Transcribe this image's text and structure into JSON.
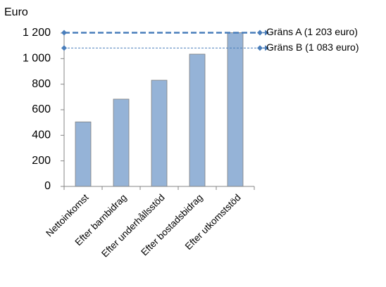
{
  "chart_data": {
    "type": "bar",
    "y_label": "Euro",
    "categories": [
      "Nettoinkomst",
      "Efter barnbidrag",
      "Efter underhållsstöd",
      "Efter bostadsbidrag",
      "Efter utkomststöd"
    ],
    "values": [
      505,
      683,
      831,
      1035,
      1203
    ],
    "color": "#95b3d7",
    "ylim": [
      0,
      1200
    ],
    "yticks": [
      0,
      200,
      400,
      600,
      800,
      {
        "value": 1000,
        "label": "1 000"
      },
      {
        "value": 1200,
        "label": "1 200"
      }
    ],
    "grid": false,
    "reference_lines": [
      {
        "label": "Gräns A (1 203 euro)",
        "value": 1203,
        "color": "#4a7ebb"
      },
      {
        "label": "Gräns B (1 083 euro)",
        "value": 1083,
        "color": "#4a7ebb"
      }
    ]
  }
}
